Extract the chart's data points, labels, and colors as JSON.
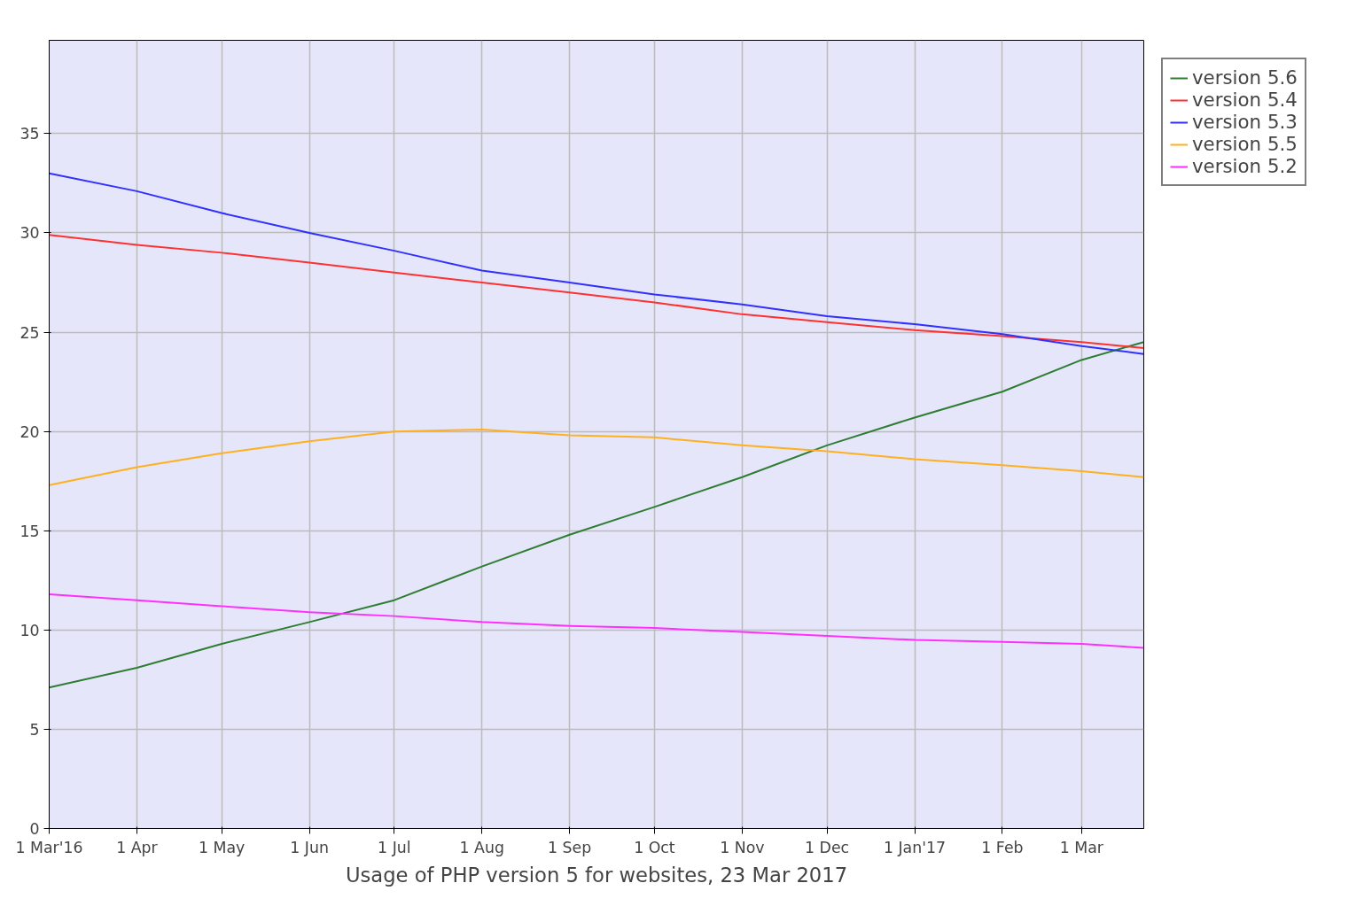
{
  "chart_data": {
    "type": "line",
    "xlabel": "Usage of PHP version 5 for websites, 23 Mar 2017",
    "x": [
      "2016-03-01",
      "2016-04-01",
      "2016-05-01",
      "2016-06-01",
      "2016-07-01",
      "2016-08-01",
      "2016-09-01",
      "2016-10-01",
      "2016-11-01",
      "2016-12-01",
      "2017-01-01",
      "2017-02-01",
      "2017-03-01",
      "2017-03-23"
    ],
    "series": [
      {
        "name": "version 5.6",
        "color": "#2e7d32",
        "values": [
          7.1,
          8.1,
          9.3,
          10.4,
          11.5,
          13.2,
          14.8,
          16.2,
          17.7,
          19.3,
          20.7,
          22.0,
          23.6,
          24.5
        ]
      },
      {
        "name": "version 5.4",
        "color": "#ff3030",
        "values": [
          29.9,
          29.4,
          29.0,
          28.5,
          28.0,
          27.5,
          27.0,
          26.5,
          25.9,
          25.5,
          25.1,
          24.8,
          24.5,
          24.2
        ]
      },
      {
        "name": "version 5.3",
        "color": "#3030ff",
        "values": [
          33.0,
          32.1,
          31.0,
          30.0,
          29.1,
          28.1,
          27.5,
          26.9,
          26.4,
          25.8,
          25.4,
          24.9,
          24.3,
          23.9
        ]
      },
      {
        "name": "version 5.5",
        "color": "#ffb020",
        "values": [
          17.3,
          18.2,
          18.9,
          19.5,
          20.0,
          20.1,
          19.8,
          19.7,
          19.3,
          19.0,
          18.6,
          18.3,
          18.0,
          17.7
        ]
      },
      {
        "name": "version 5.2",
        "color": "#ff30ff",
        "values": [
          11.8,
          11.5,
          11.2,
          10.9,
          10.7,
          10.4,
          10.2,
          10.1,
          9.9,
          9.7,
          9.5,
          9.4,
          9.3,
          9.1
        ]
      }
    ],
    "xlim": [
      "2016-03-01",
      "2017-03-23"
    ],
    "xticks": [
      {
        "value": "2016-03-01",
        "label": "1 Mar'16"
      },
      {
        "value": "2016-04-01",
        "label": "1 Apr"
      },
      {
        "value": "2016-05-01",
        "label": "1 May"
      },
      {
        "value": "2016-06-01",
        "label": "1 Jun"
      },
      {
        "value": "2016-07-01",
        "label": "1 Jul"
      },
      {
        "value": "2016-08-01",
        "label": "1 Aug"
      },
      {
        "value": "2016-09-01",
        "label": "1 Sep"
      },
      {
        "value": "2016-10-01",
        "label": "1 Oct"
      },
      {
        "value": "2016-11-01",
        "label": "1 Nov"
      },
      {
        "value": "2016-12-01",
        "label": "1 Dec"
      },
      {
        "value": "2017-01-01",
        "label": "1 Jan'17"
      },
      {
        "value": "2017-02-01",
        "label": "1 Feb"
      },
      {
        "value": "2017-03-01",
        "label": "1 Mar"
      }
    ],
    "ylim": [
      0,
      39.7
    ],
    "yticks": [
      0,
      5,
      10,
      15,
      20,
      25,
      30,
      35
    ],
    "grid": true,
    "legend": "top right",
    "marker": "none",
    "line_style": "solid"
  }
}
